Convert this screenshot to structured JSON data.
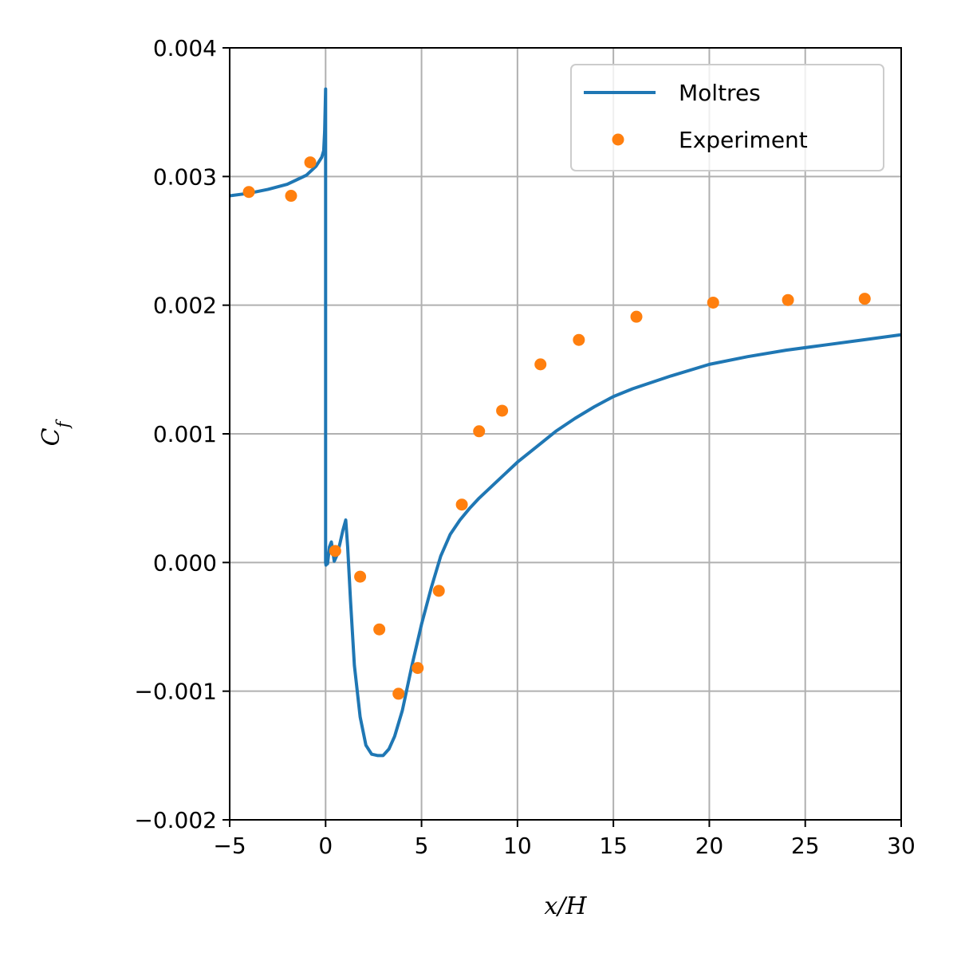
{
  "chart_data": {
    "type": "line",
    "xlabel": "x/H",
    "ylabel": "C_f",
    "xlim": [
      -5,
      30
    ],
    "ylim": [
      -0.002,
      0.004
    ],
    "xticks": [
      -5,
      0,
      5,
      10,
      15,
      20,
      25,
      30
    ],
    "xtick_labels": [
      "−5",
      "0",
      "5",
      "10",
      "15",
      "20",
      "25",
      "30"
    ],
    "yticks": [
      -0.002,
      -0.001,
      0.0,
      0.001,
      0.002,
      0.003,
      0.004
    ],
    "ytick_labels": [
      "−0.002",
      "−0.001",
      "0.000",
      "0.001",
      "0.002",
      "0.003",
      "0.004"
    ],
    "grid": true,
    "legend_position": "top-right",
    "colors": {
      "Moltres": "#1f77b4",
      "Experiment": "#ff7f0e"
    },
    "series": [
      {
        "name": "Moltres",
        "kind": "line",
        "x": [
          -5,
          -4,
          -3,
          -2,
          -1,
          -0.5,
          -0.2,
          -0.1,
          -0.05,
          0.0,
          0.0,
          0.02,
          0.05,
          0.1,
          0.2,
          0.3,
          0.45,
          0.6,
          0.75,
          0.9,
          1.05,
          1.15,
          1.3,
          1.5,
          1.8,
          2.1,
          2.4,
          2.7,
          3.0,
          3.3,
          3.6,
          4.0,
          4.5,
          5.0,
          5.5,
          6.0,
          6.5,
          7.0,
          7.5,
          8.0,
          9.0,
          10.0,
          11.0,
          12.0,
          13.0,
          14.0,
          15.0,
          16.0,
          18.0,
          20.0,
          22.0,
          24.0,
          26.0,
          28.0,
          30.0
        ],
        "y": [
          0.00285,
          0.00287,
          0.0029,
          0.00294,
          0.00301,
          0.00308,
          0.00315,
          0.0032,
          0.00335,
          0.00368,
          0.0,
          -2e-05,
          4e-05,
          -1e-05,
          0.00012,
          0.00016,
          1e-05,
          6e-05,
          0.00015,
          0.00025,
          0.00033,
          0.00012,
          -0.0003,
          -0.0008,
          -0.0012,
          -0.00142,
          -0.00149,
          -0.0015,
          -0.0015,
          -0.00145,
          -0.00135,
          -0.00115,
          -0.0008,
          -0.00048,
          -0.0002,
          5e-05,
          0.00022,
          0.00033,
          0.00042,
          0.0005,
          0.00064,
          0.00078,
          0.0009,
          0.00102,
          0.00112,
          0.00121,
          0.00129,
          0.00135,
          0.00145,
          0.00154,
          0.0016,
          0.00165,
          0.00169,
          0.00173,
          0.00177
        ]
      },
      {
        "name": "Experiment",
        "kind": "scatter",
        "x": [
          -4.0,
          -1.8,
          -0.8,
          0.5,
          1.8,
          2.8,
          3.8,
          4.8,
          5.9,
          7.1,
          8.0,
          9.2,
          11.2,
          13.2,
          16.2,
          20.2,
          24.1,
          28.1
        ],
        "y": [
          0.00288,
          0.00285,
          0.00311,
          9e-05,
          -0.00011,
          -0.00052,
          -0.00102,
          -0.00082,
          -0.00022,
          0.00045,
          0.00102,
          0.00118,
          0.00154,
          0.00173,
          0.00191,
          0.00202,
          0.00204,
          0.00205
        ]
      }
    ]
  }
}
